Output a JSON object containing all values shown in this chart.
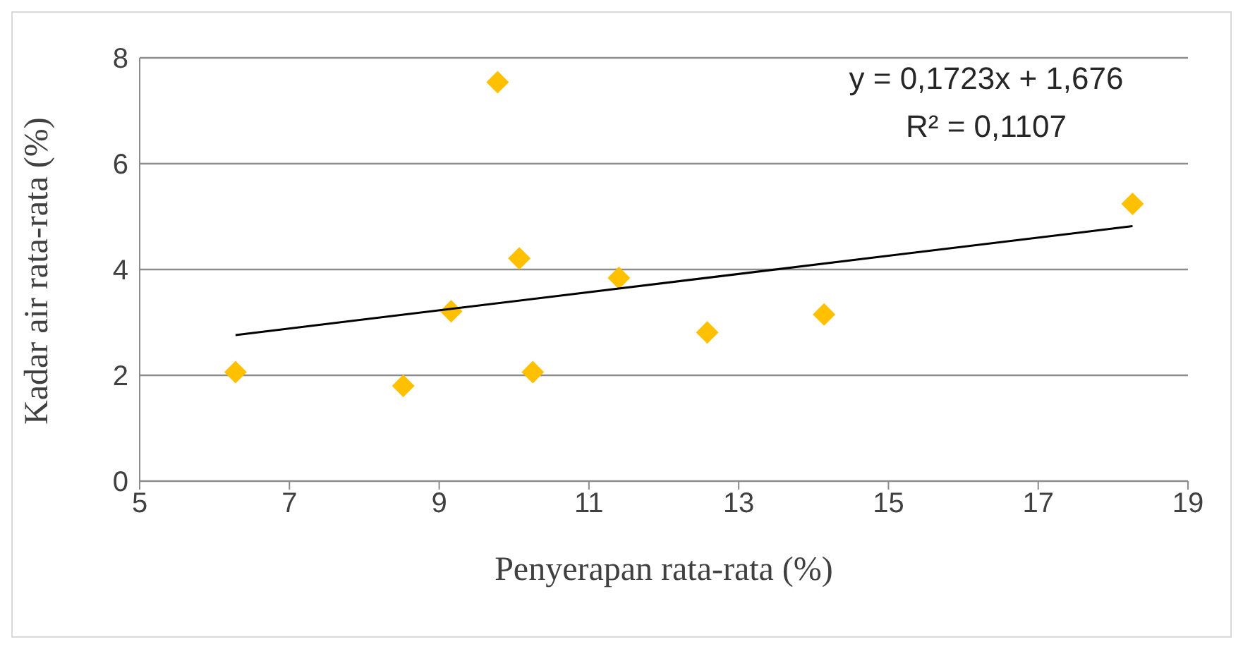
{
  "chart_data": {
    "type": "scatter",
    "xlabel": "Penyerapan rata-rata (%)",
    "ylabel": "Kadar air rata-rata (%)",
    "xlim": [
      5,
      19
    ],
    "xticks": [
      5,
      7,
      9,
      11,
      13,
      15,
      17,
      19
    ],
    "ylim": [
      0,
      8
    ],
    "yticks": [
      0,
      2,
      4,
      6,
      8
    ],
    "grid": "y",
    "marker": "diamond",
    "annotations": [
      "y = 0,1723x + 1,676",
      "R² = 0,1107"
    ],
    "series": [
      {
        "type": "scatter",
        "color": "#ffc000",
        "x": [
          6.28,
          8.52,
          9.16,
          9.78,
          10.07,
          10.25,
          11.4,
          12.58,
          14.14,
          18.26
        ],
        "values": [
          2.06,
          1.8,
          3.21,
          7.54,
          4.21,
          2.06,
          3.84,
          2.81,
          3.15,
          5.24
        ]
      },
      {
        "type": "line",
        "color": "#000000",
        "marker": "none",
        "line_style": "solid",
        "x": [
          6.28,
          18.26
        ],
        "values": [
          2.76,
          4.82
        ]
      }
    ]
  }
}
